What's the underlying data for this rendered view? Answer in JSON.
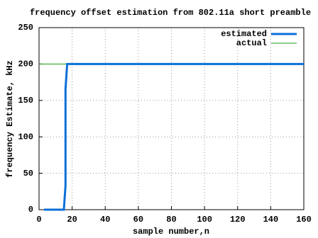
{
  "chart_data": {
    "type": "line",
    "title": "frequency offset estimation from 802.11a short preamble",
    "xlabel": "sample number,n",
    "ylabel": "frequency Estimate, kHz",
    "series": [
      {
        "name": "estimated",
        "color": "#0a6fd8",
        "width": 3,
        "x": [
          3,
          15,
          16,
          16,
          16,
          17,
          160
        ],
        "values": [
          0,
          0,
          33,
          100,
          166,
          200,
          200
        ]
      },
      {
        "name": "actual",
        "color": "#1a9e1a",
        "width": 1,
        "x": [
          0,
          160
        ],
        "values": [
          200,
          200
        ]
      }
    ],
    "xlim": [
      0,
      160
    ],
    "xticks": [
      0,
      20,
      40,
      60,
      80,
      100,
      120,
      140,
      160
    ],
    "ylim": [
      0,
      250
    ],
    "yticks": [
      0,
      50,
      100,
      150,
      200,
      250
    ],
    "grid": true,
    "legend": "top-right"
  }
}
